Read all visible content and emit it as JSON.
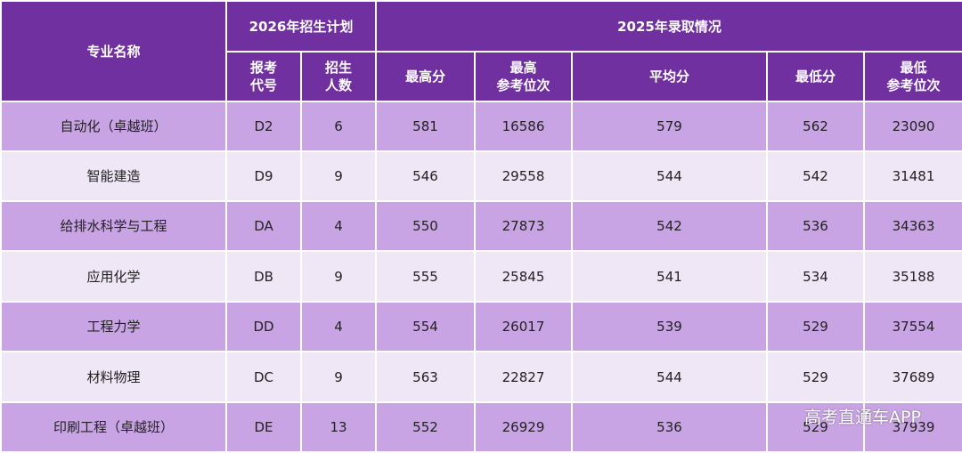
{
  "table": {
    "group_headers": [
      "专业名称",
      "2026年招生计划",
      "2025年录取情况"
    ],
    "column_headers": [
      "报考\n代号",
      "招生\n人数",
      "最高分",
      "最高\n参考位次",
      "平均分",
      "最低分",
      "最低\n参考位次"
    ],
    "rows": [
      [
        "自动化（卓越班）",
        "D2",
        6,
        581,
        16586,
        579,
        562,
        23090
      ],
      [
        "智能建造",
        "D9",
        9,
        546,
        29558,
        544,
        542,
        31481
      ],
      [
        "给排水科学与工程",
        "DA",
        4,
        550,
        27873,
        542,
        536,
        34363
      ],
      [
        "应用化学",
        "DB",
        9,
        555,
        25845,
        541,
        534,
        35188
      ],
      [
        "工程力学",
        "DD",
        4,
        554,
        26017,
        539,
        529,
        37554
      ],
      [
        "材料物理",
        "DC",
        9,
        563,
        22827,
        544,
        529,
        37689
      ],
      [
        "印刷工程（卓越班）",
        "DE",
        13,
        552,
        26929,
        536,
        529,
        37939
      ]
    ]
  },
  "watermark": "高考直通车APP"
}
